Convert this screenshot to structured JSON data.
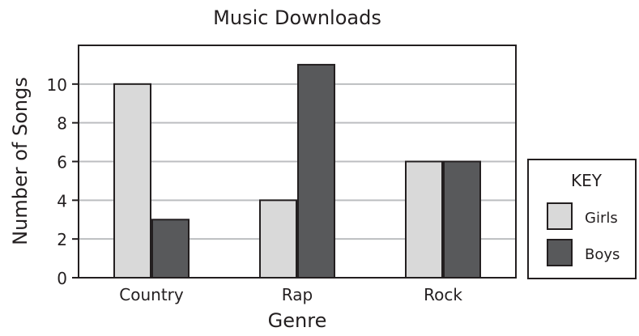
{
  "chart_data": {
    "type": "bar",
    "title": "Music Downloads",
    "xlabel": "Genre",
    "ylabel": "Number of Songs",
    "categories": [
      "Country",
      "Rap",
      "Rock"
    ],
    "series": [
      {
        "name": "Girls",
        "values": [
          10,
          4,
          6
        ],
        "color": "#d9d9d9"
      },
      {
        "name": "Boys",
        "values": [
          3,
          11,
          6
        ],
        "color": "#58595b"
      }
    ],
    "ylim": [
      0,
      12
    ],
    "yticks": [
      0,
      2,
      4,
      6,
      8,
      10
    ],
    "grid": true,
    "legend": {
      "title": "KEY",
      "position": "right"
    }
  }
}
